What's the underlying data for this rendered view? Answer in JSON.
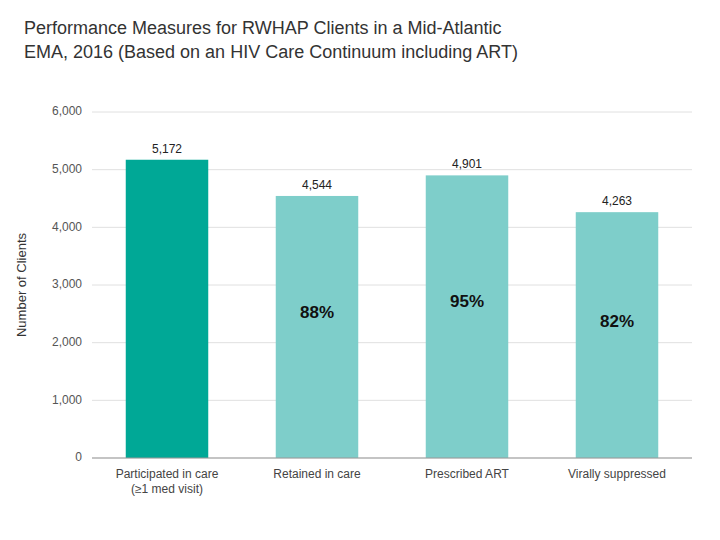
{
  "chart_data": {
    "type": "bar",
    "title": "Performance Measures for RWHAP Clients in a Mid-Atlantic\nEMA, 2016 (Based on an HIV Care Continuum including ART)",
    "categories": [
      "Participated in care\n(≥1 med visit)",
      "Retained in care",
      "Prescribed ART",
      "Virally suppressed"
    ],
    "values": [
      5172,
      4544,
      4901,
      4263
    ],
    "value_labels": [
      "5,172",
      "4,544",
      "4,901",
      "4,263"
    ],
    "percent_labels": [
      null,
      "88%",
      "95%",
      "82%"
    ],
    "colors": [
      "#00A896",
      "#7ECECA",
      "#7ECECA",
      "#7ECECA"
    ],
    "ylabel": "Number of Clients",
    "ylim": [
      0,
      6000
    ],
    "yticks": [
      0,
      {
        "value": 1000,
        "label": "1,000"
      },
      {
        "value": 2000,
        "label": "2,000"
      },
      {
        "value": 3000,
        "label": "3,000"
      },
      {
        "value": 4000,
        "label": "4,000"
      },
      {
        "value": 5000,
        "label": "5,000"
      },
      {
        "value": 6000,
        "label": "6,000"
      }
    ],
    "grid": true,
    "data_labels": true
  }
}
